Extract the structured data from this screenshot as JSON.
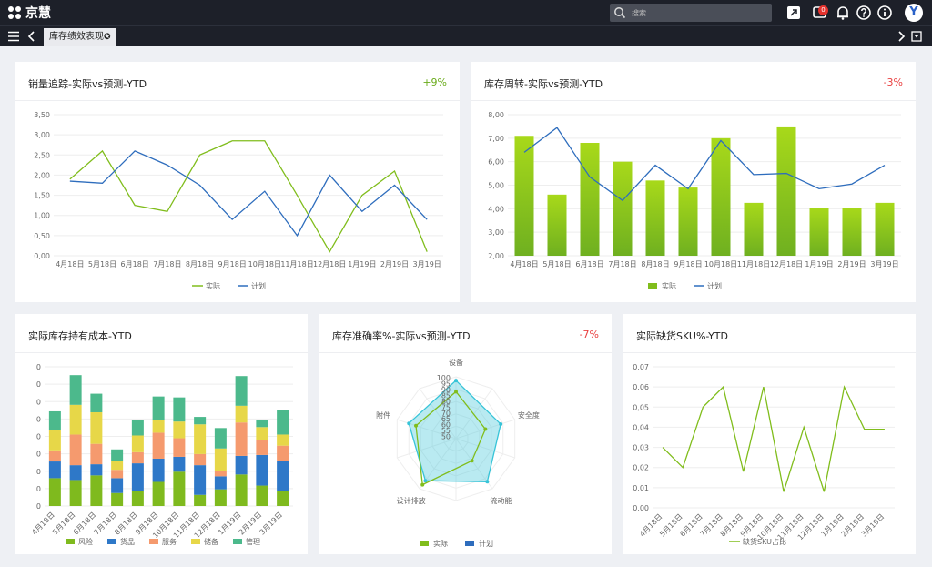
{
  "app": {
    "logo_text": "京慧",
    "search_placeholder": "搜索",
    "notification_count": "0",
    "avatar_letter": "Y",
    "active_tab": "库存绩效表现"
  },
  "colors": {
    "actual": "#80bd1c",
    "plan": "#2e6dbd",
    "positive": "#6aab1a",
    "negative": "#e94040",
    "teal": "#37c4d8"
  },
  "panels": {
    "p1": {
      "title": "销量追踪-实际vs预测-YTD",
      "change": "+9%"
    },
    "p2": {
      "title": "库存周转-实际vs预测-YTD",
      "change": "-3%"
    },
    "p3": {
      "title": "实际库存持有成本-YTD"
    },
    "p4": {
      "title": "库存准确率%-实际vs预测-YTD",
      "change": "-7%"
    },
    "p5": {
      "title": "实际缺货SKU%-YTD"
    }
  },
  "chart_data": [
    {
      "type": "line",
      "categories": [
        "4月18日",
        "5月18日",
        "6月18日",
        "7月18日",
        "8月18日",
        "9月18日",
        "10月18日",
        "11月18日",
        "12月18日",
        "1月19日",
        "2月19日",
        "3月19日"
      ],
      "ylim": [
        0,
        3.5
      ],
      "yticks": [
        "0,00",
        "0,50",
        "1,00",
        "1,50",
        "2,00",
        "2,50",
        "3,00",
        "3,50"
      ],
      "series": [
        {
          "name": "实际",
          "values": [
            1.9,
            2.6,
            1.25,
            1.1,
            2.5,
            2.85,
            2.85,
            1.5,
            0.1,
            1.5,
            2.1,
            0.1
          ]
        },
        {
          "name": "计划",
          "values": [
            1.85,
            1.8,
            2.6,
            2.25,
            1.75,
            0.9,
            1.6,
            0.5,
            2.0,
            1.1,
            1.75,
            0.9
          ]
        }
      ]
    },
    {
      "type": "bar",
      "categories": [
        "4月18日",
        "5月18日",
        "6月18日",
        "7月18日",
        "8月18日",
        "9月18日",
        "10月18日",
        "11月18日",
        "12月18日",
        "1月19日",
        "2月19日",
        "3月19日"
      ],
      "ylim": [
        2,
        8
      ],
      "yticks": [
        "2,00",
        "3,00",
        "4,00",
        "5,00",
        "6,00",
        "7,00",
        "8,00"
      ],
      "series": [
        {
          "name": "实际",
          "type": "bar",
          "values": [
            7.1,
            4.6,
            6.8,
            6.0,
            5.2,
            4.9,
            7.0,
            4.25,
            7.5,
            4.05,
            4.05,
            4.25
          ]
        },
        {
          "name": "计划",
          "type": "line",
          "values": [
            6.4,
            7.45,
            5.35,
            4.35,
            5.85,
            4.85,
            6.9,
            5.45,
            5.5,
            4.85,
            5.05,
            5.85
          ]
        }
      ]
    },
    {
      "type": "bar",
      "stacked": true,
      "categories": [
        "4月18日",
        "5月18日",
        "6月18日",
        "7月18日",
        "8月18日",
        "9月18日",
        "10月18日",
        "11月18日",
        "12月18日",
        "1月19日",
        "2月19日",
        "3月19日"
      ],
      "yticks": [
        "0",
        "0",
        "0",
        "0",
        "0",
        "0",
        "0",
        "0",
        "0"
      ],
      "series": [
        {
          "name": "风险",
          "values": [
            30,
            28,
            33,
            14,
            16,
            26,
            37,
            12,
            18,
            34,
            22,
            16
          ]
        },
        {
          "name": "货品",
          "values": [
            18,
            16,
            12,
            16,
            30,
            25,
            16,
            32,
            14,
            20,
            33,
            33
          ]
        },
        {
          "name": "服务",
          "values": [
            12,
            33,
            22,
            9,
            12,
            28,
            20,
            12,
            6,
            36,
            16,
            16
          ]
        },
        {
          "name": "储备",
          "values": [
            22,
            32,
            34,
            10,
            18,
            14,
            18,
            32,
            24,
            18,
            14,
            12
          ]
        },
        {
          "name": "管理",
          "values": [
            20,
            32,
            20,
            12,
            17,
            25,
            26,
            8,
            22,
            32,
            8,
            26
          ]
        }
      ]
    },
    {
      "type": "radar",
      "axes": [
        "设备",
        "安全度",
        "流动能",
        "设计排放",
        "附件"
      ],
      "rlim": [
        50,
        100
      ],
      "rticks": [
        "100",
        "95",
        "90",
        "85",
        "80",
        "75",
        "70",
        "65",
        "60",
        "55",
        "50"
      ],
      "series": [
        {
          "name": "实际",
          "values": [
            88,
            75,
            72,
            96,
            84
          ]
        },
        {
          "name": "计划",
          "values": [
            97,
            88,
            93,
            92,
            90
          ]
        }
      ]
    },
    {
      "type": "line",
      "categories": [
        "4月18日",
        "5月18日",
        "6月18日",
        "7月18日",
        "8月18日",
        "9月18日",
        "10月18日",
        "11月18日",
        "12月18日",
        "1月19日",
        "2月19日",
        "3月19日"
      ],
      "ylim": [
        0,
        0.07
      ],
      "yticks": [
        "0,00",
        "0,01",
        "0,02",
        "0,03",
        "0,04",
        "0,05",
        "0,06",
        "0,07"
      ],
      "series": [
        {
          "name": "缺货SKU占比",
          "values": [
            0.03,
            0.02,
            0.05,
            0.06,
            0.018,
            0.06,
            0.008,
            0.04,
            0.008,
            0.06,
            0.039,
            0.039
          ]
        }
      ]
    }
  ]
}
